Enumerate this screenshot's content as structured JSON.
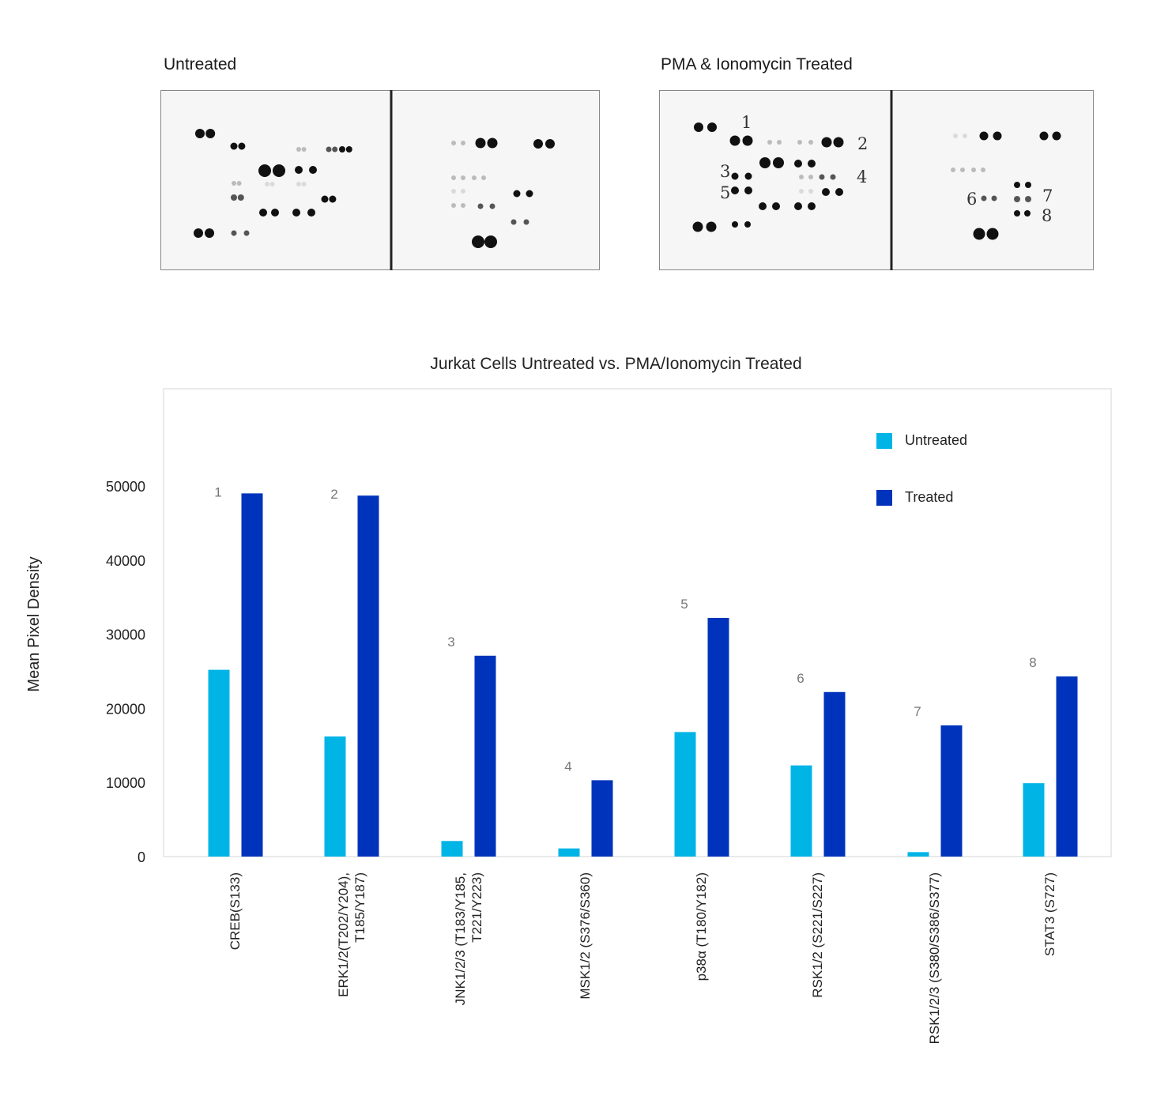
{
  "blots": {
    "untreated_title": "Untreated",
    "treated_title": "PMA & Ionomycin Treated",
    "treated_labels": [
      "1",
      "2",
      "3",
      "4",
      "5",
      "6",
      "7",
      "8"
    ]
  },
  "chart_data": {
    "type": "bar",
    "title": "Jurkat Cells Untreated vs. PMA/Ionomycin Treated",
    "xlabel": "",
    "ylabel": "Mean Pixel Density",
    "ylim": [
      0,
      60000
    ],
    "yticks": [
      0,
      10000,
      20000,
      30000,
      40000,
      50000
    ],
    "grid": false,
    "legend_position": "top-right",
    "categories": [
      [
        "CREB(S133)"
      ],
      [
        "ERK1/2(T202/Y204),",
        "T185/Y187)"
      ],
      [
        "JNK1/2/3 (T183/Y185,",
        "T221/Y223)"
      ],
      [
        "MSK1/2 (S376/S360)"
      ],
      [
        "p38α (T180/Y182)"
      ],
      [
        "RSK1/2 (S221/S227)"
      ],
      [
        "RSK1/2/3 (S380/S386/S377)"
      ],
      [
        "STAT3 (S727)"
      ]
    ],
    "series": [
      {
        "name": "Untreated",
        "color": "#00b4e6",
        "values": [
          25200,
          16200,
          2100,
          1100,
          16800,
          12300,
          600,
          9900
        ]
      },
      {
        "name": "Treated",
        "color": "#0033bb",
        "values": [
          49000,
          48700,
          27100,
          10300,
          32200,
          22200,
          17700,
          24300
        ]
      }
    ],
    "annotations": [
      "1",
      "2",
      "3",
      "4",
      "5",
      "6",
      "7",
      "8"
    ]
  }
}
